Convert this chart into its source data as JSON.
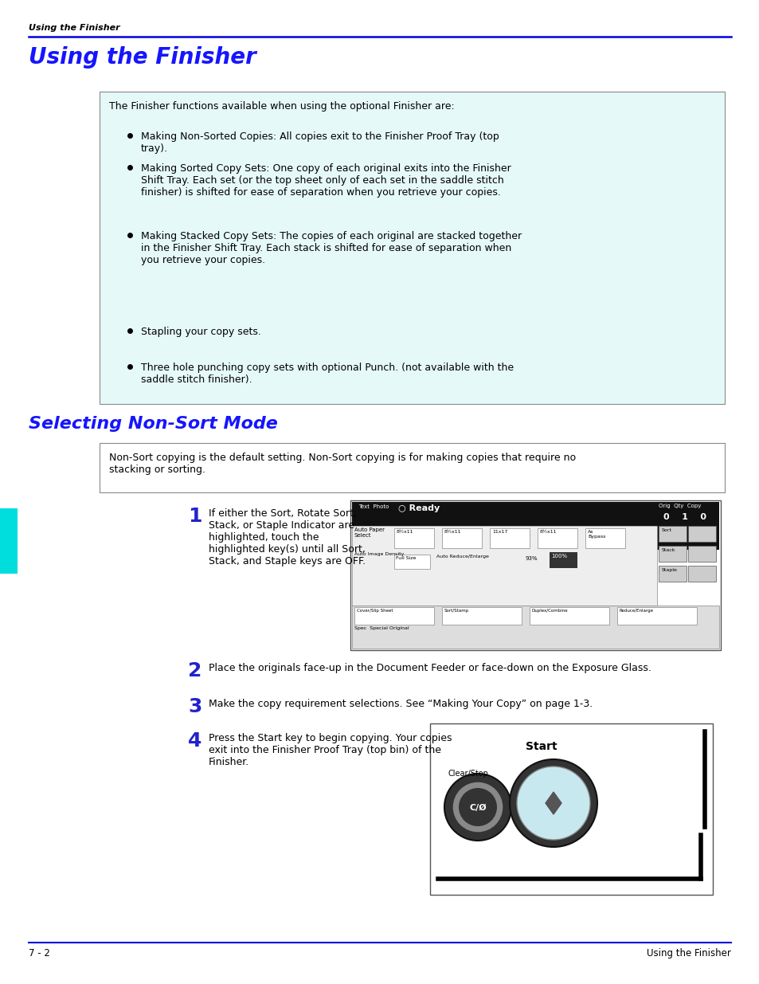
{
  "page_bg": "#ffffff",
  "header_text": "Using the Finisher",
  "header_color": "#000000",
  "header_line_color": "#0000dd",
  "title1": "Using the Finisher",
  "title1_color": "#1515ff",
  "title2": "Selecting Non-Sort Mode",
  "title2_color": "#1515ff",
  "box1_bg": "#e6f9f9",
  "box1_border": "#888888",
  "box1_text_intro": "The Finisher functions available when using the optional Finisher are:",
  "box1_bullets": [
    "Making Non-Sorted Copies: All copies exit to the Finisher Proof Tray (top\ntray).",
    "Making Sorted Copy Sets: One copy of each original exits into the Finisher\nShift Tray. Each set (or the top sheet only of each set in the saddle stitch\nfinisher) is shifted for ease of separation when you retrieve your copies.",
    "Making Stacked Copy Sets: The copies of each original are stacked together\nin the Finisher Shift Tray. Each stack is shifted for ease of separation when\nyou retrieve your copies.",
    "Stapling your copy sets.",
    "Three hole punching copy sets with optional Punch. (not available with the\nsaddle stitch finisher)."
  ],
  "box2_text": "Non-Sort copying is the default setting. Non-Sort copying is for making copies that require no\nstacking or sorting.",
  "step1_num": "1",
  "step1_text": "If either the Sort, Rotate Sort,\nStack, or Staple Indicator are\nhighlighted, touch the\nhighlighted key(s) until all Sort,\nStack, and Staple keys are OFF.",
  "step2_num": "2",
  "step2_text": "Place the originals face-up in the Document Feeder or face-down on the Exposure Glass.",
  "step3_num": "3",
  "step3_text": "Make the copy requirement selections. See “Making Your Copy” on page 1-3.",
  "step4_num": "4",
  "step4_text": "Press the Start key to begin copying. Your copies\nexit into the Finisher Proof Tray (top bin) of the\nFinisher.",
  "footer_left": "7 - 2",
  "footer_right": "Using the Finisher",
  "sidebar_color": "#00dddd",
  "text_color": "#000000",
  "step_num_color": "#2222cc"
}
